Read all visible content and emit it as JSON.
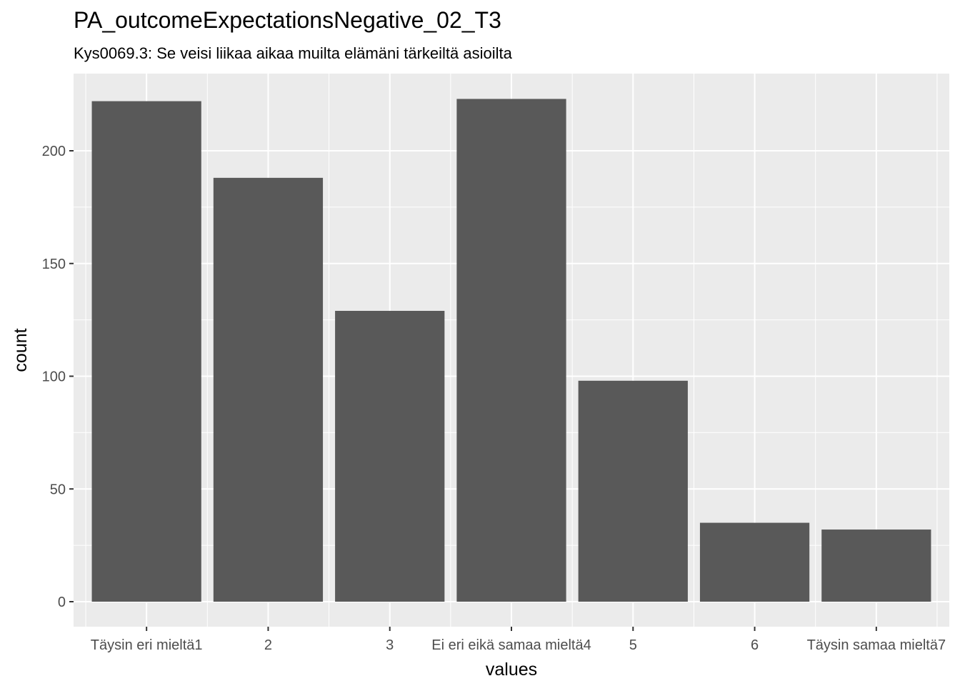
{
  "chart_data": {
    "type": "bar",
    "title": "PA_outcomeExpectationsNegative_02_T3",
    "subtitle": "Kys0069.3: Se veisi liikaa aikaa muilta elämäni tärkeiltä asioilta",
    "xlabel": "values",
    "ylabel": "count",
    "categories": [
      "Täysin eri mieltä1",
      "2",
      "3",
      "Ei eri eikä samaa mieltä4",
      "5",
      "6",
      "Täysin samaa mieltä7"
    ],
    "values": [
      222,
      188,
      129,
      223,
      98,
      35,
      32
    ],
    "ylim": [
      0,
      233
    ],
    "yticks": [
      0,
      50,
      100,
      150,
      200
    ],
    "ytick_labels": [
      "0",
      "50",
      "100",
      "150",
      "200"
    ],
    "grid": true,
    "colors": {
      "panel": "#ebebeb",
      "bar": "#595959",
      "grid": "#ffffff"
    }
  }
}
